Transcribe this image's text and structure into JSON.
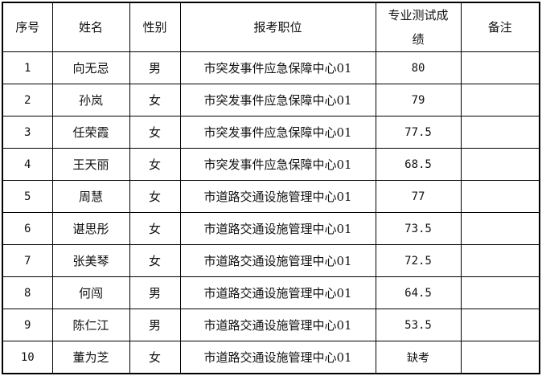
{
  "headers": [
    "序号",
    "姓名",
    "性别",
    "报考职位",
    "专业测试成绩",
    "备注"
  ],
  "rows": [
    {
      "no": "1",
      "name": "向无忌",
      "gender": "男",
      "position": "市突发事件应急保障中心01",
      "score": "80",
      "note": ""
    },
    {
      "no": "2",
      "name": "孙岚",
      "gender": "女",
      "position": "市突发事件应急保障中心01",
      "score": "79",
      "note": ""
    },
    {
      "no": "3",
      "name": "任荣霞",
      "gender": "女",
      "position": "市突发事件应急保障中心01",
      "score": "77.5",
      "note": ""
    },
    {
      "no": "4",
      "name": "王天丽",
      "gender": "女",
      "position": "市突发事件应急保障中心01",
      "score": "68.5",
      "note": ""
    },
    {
      "no": "5",
      "name": "周慧",
      "gender": "女",
      "position": "市道路交通设施管理中心01",
      "score": "77",
      "note": ""
    },
    {
      "no": "6",
      "name": "谌思彤",
      "gender": "女",
      "position": "市道路交通设施管理中心01",
      "score": "73.5",
      "note": ""
    },
    {
      "no": "7",
      "name": "张美琴",
      "gender": "女",
      "position": "市道路交通设施管理中心01",
      "score": "72.5",
      "note": ""
    },
    {
      "no": "8",
      "name": "何闯",
      "gender": "男",
      "position": "市道路交通设施管理中心01",
      "score": "64.5",
      "note": ""
    },
    {
      "no": "9",
      "name": "陈仁江",
      "gender": "男",
      "position": "市道路交通设施管理中心01",
      "score": "53.5",
      "note": ""
    },
    {
      "no": "10",
      "name": "董为芝",
      "gender": "女",
      "position": "市道路交通设施管理中心01",
      "score": "缺考",
      "note": ""
    }
  ]
}
